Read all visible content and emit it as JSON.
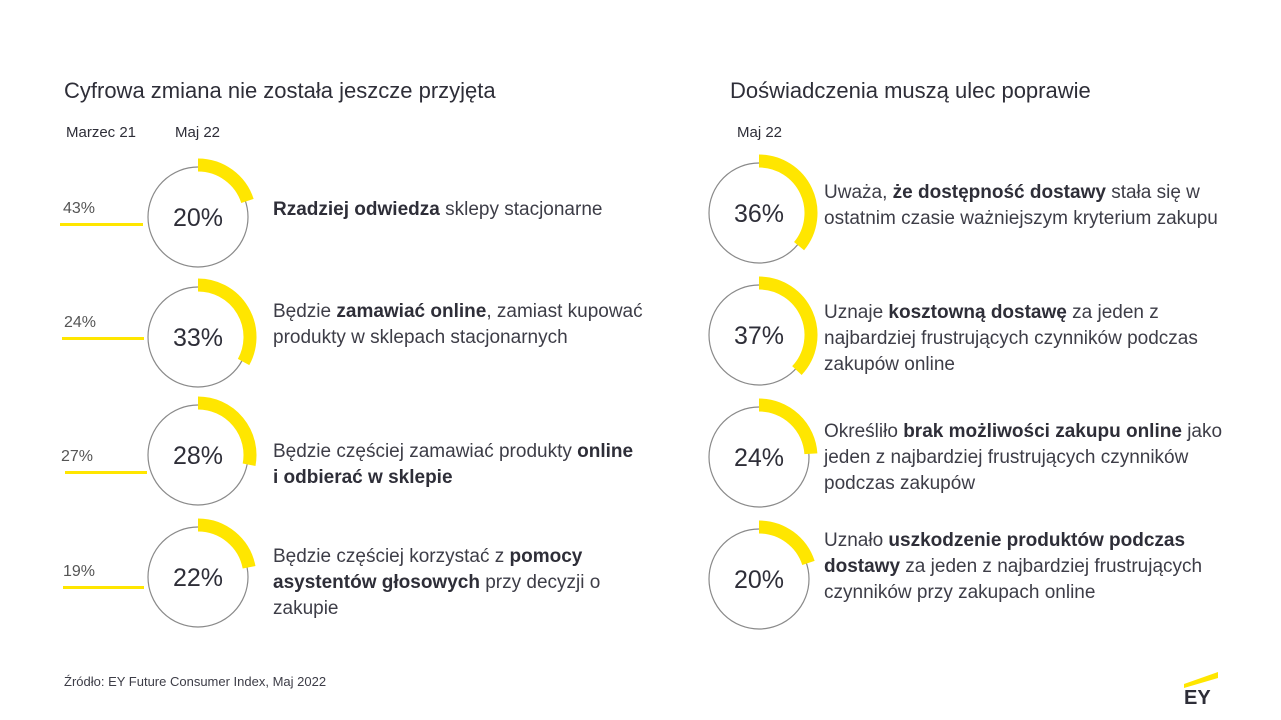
{
  "left": {
    "title": "Cyfrowa zmiana nie została jeszcze przyjęta",
    "col_prev": "Marzec 21",
    "col_curr": "Maj 22"
  },
  "right": {
    "title": "Doświadczenia muszą ulec poprawie",
    "col_curr": "Maj 22"
  },
  "chart_data": [
    {
      "type": "donut",
      "title": "Cyfrowa zmiana nie została jeszcze przyjęta",
      "series_names": [
        "Marzec 21",
        "Maj 22"
      ],
      "items": [
        {
          "prev": 43,
          "prev_label": "43%",
          "value": 20,
          "label": "20%",
          "desc": [
            {
              "t": "Rzadziej odwiedza",
              "b": true
            },
            {
              "t": " sklepy stacjonarne",
              "b": false
            }
          ]
        },
        {
          "prev": 24,
          "prev_label": "24%",
          "value": 33,
          "label": "33%",
          "desc": [
            {
              "t": "Będzie ",
              "b": false
            },
            {
              "t": "zamawiać online",
              "b": true
            },
            {
              "t": ", zamiast kupować produkty w sklepach stacjonarnych",
              "b": false
            }
          ]
        },
        {
          "prev": 27,
          "prev_label": "27%",
          "value": 28,
          "label": "28%",
          "desc": [
            {
              "t": "Będzie częściej zamawiać produkty ",
              "b": false
            },
            {
              "t": "online i odbierać w sklepie",
              "b": true
            }
          ]
        },
        {
          "prev": 19,
          "prev_label": "19%",
          "value": 22,
          "label": "22%",
          "desc": [
            {
              "t": "Będzie częściej korzystać z ",
              "b": false
            },
            {
              "t": "pomocy asystentów głosowych",
              "b": true
            },
            {
              "t": " przy decyzji o zakupie",
              "b": false
            }
          ]
        }
      ]
    },
    {
      "type": "donut",
      "title": "Doświadczenia muszą ulec poprawie",
      "series_names": [
        "Maj 22"
      ],
      "items": [
        {
          "value": 36,
          "label": "36%",
          "desc": [
            {
              "t": "Uważa, ",
              "b": false
            },
            {
              "t": "że dostępność dostawy",
              "b": true
            },
            {
              "t": " stała się w ostatnim czasie ważniejszym kryterium zakupu",
              "b": false
            }
          ]
        },
        {
          "value": 37,
          "label": "37%",
          "desc": [
            {
              "t": "Uznaje ",
              "b": false
            },
            {
              "t": "kosztowną dostawę",
              "b": true
            },
            {
              "t": " za jeden z najbardziej frustrujących czynników podczas zakupów online",
              "b": false
            }
          ]
        },
        {
          "value": 24,
          "label": "24%",
          "desc": [
            {
              "t": "Określiło ",
              "b": false
            },
            {
              "t": "brak możliwości zakupu online",
              "b": true
            },
            {
              "t": " jako jeden z najbardziej frustrujących czynników podczas zakupów",
              "b": false
            }
          ]
        },
        {
          "value": 20,
          "label": "20%",
          "desc": [
            {
              "t": "Uznało ",
              "b": false
            },
            {
              "t": "uszkodzenie produktów podczas dostawy",
              "b": true
            },
            {
              "t": " za jeden z najbardziej frustrujących czynników przy zakupach online",
              "b": false
            }
          ]
        }
      ]
    }
  ],
  "footer": {
    "source": "Źródło: EY Future Consumer Index, Maj 2022",
    "logo_text": "EY"
  },
  "colors": {
    "accent": "#ffe600",
    "ring": "#8a8a8a",
    "text": "#2e2e38"
  }
}
